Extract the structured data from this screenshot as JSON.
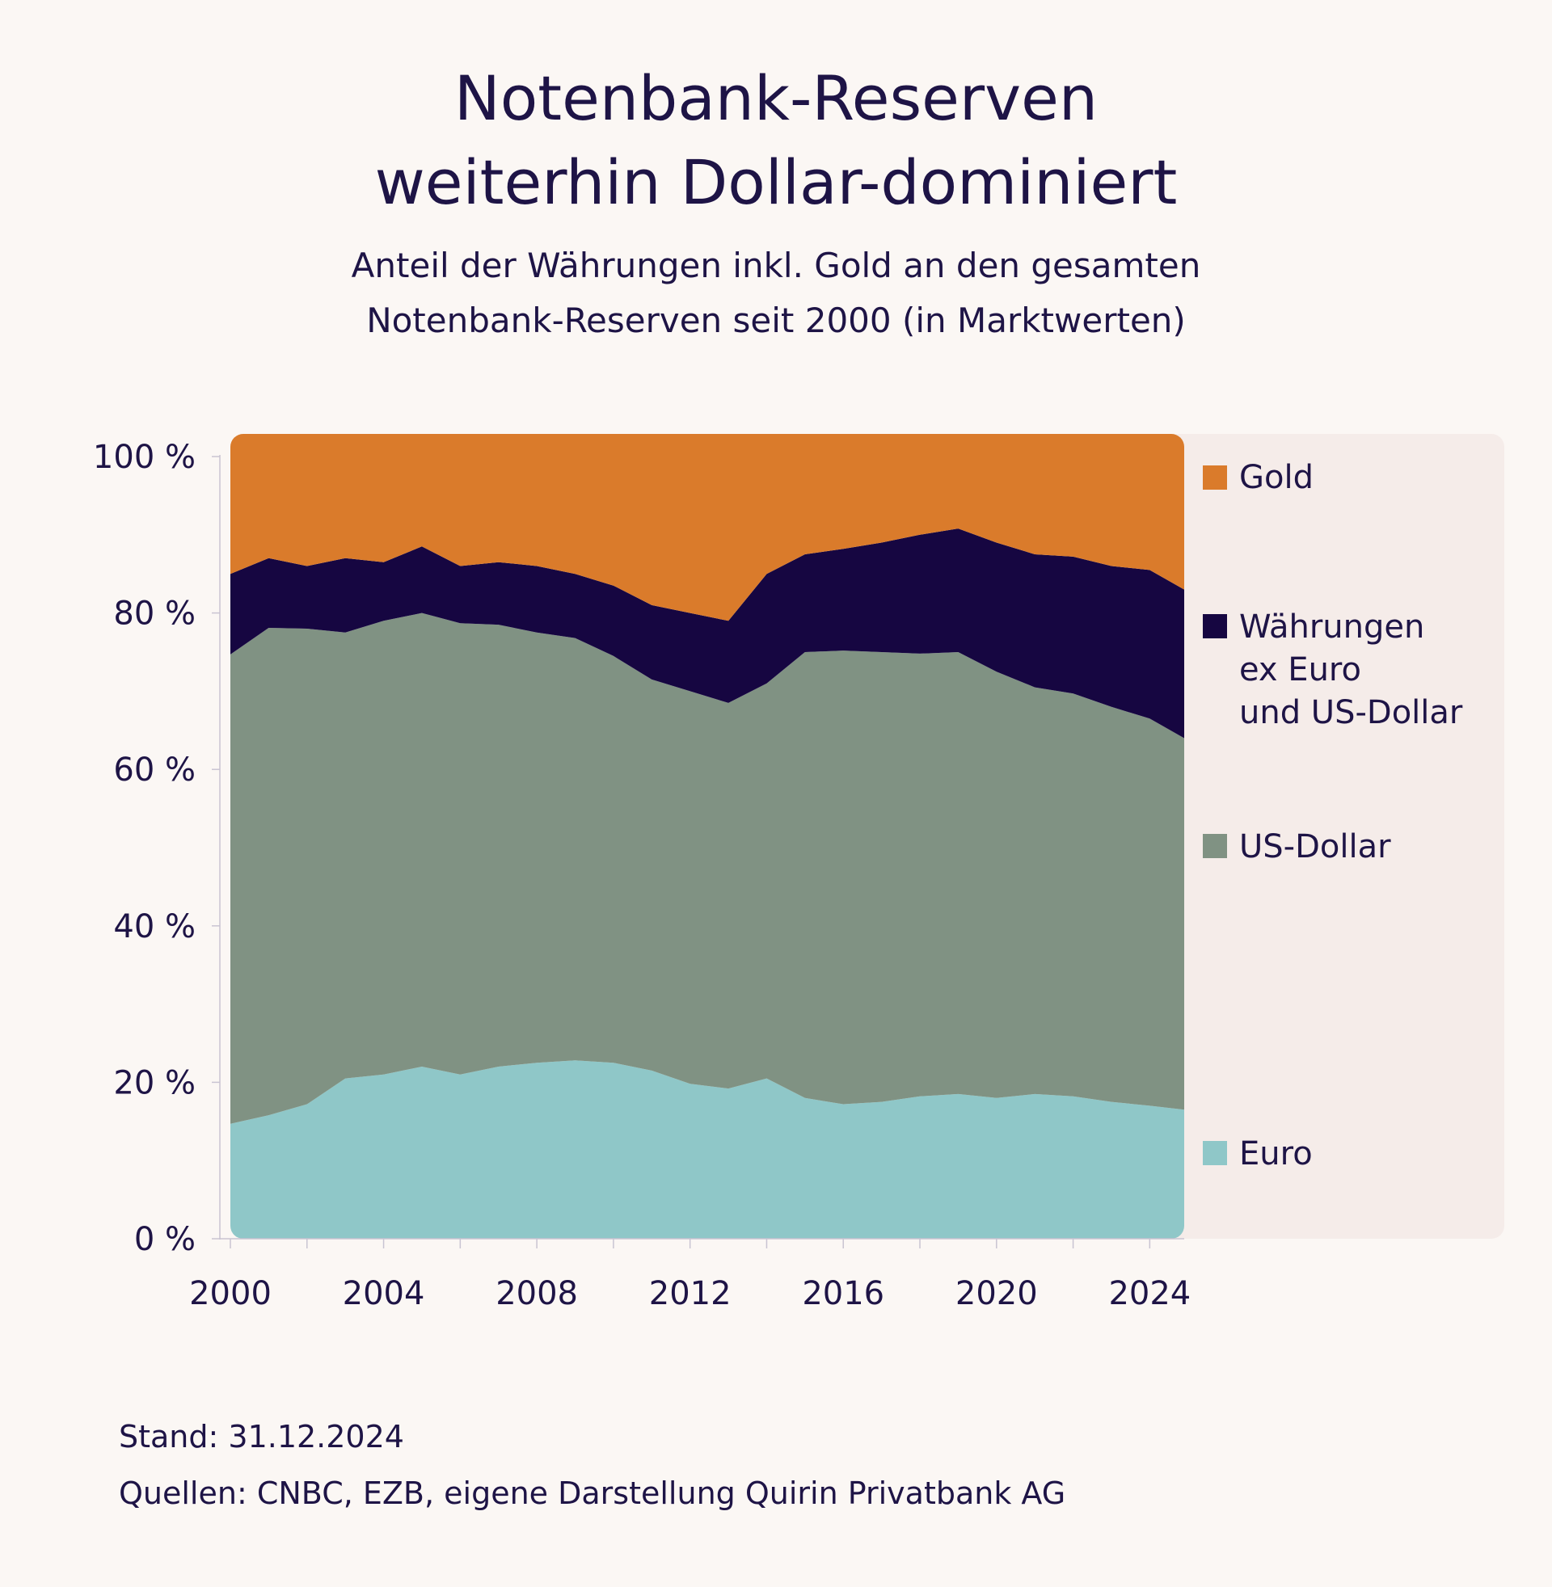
{
  "header": {
    "title_line1": "Notenbank-Reserven",
    "title_line2": "weiterhin Dollar-dominiert",
    "subtitle_line1": "Anteil der Währungen inkl. Gold an den gesamten",
    "subtitle_line2": "Notenbank-Reserven seit 2000 (in Marktwerten)"
  },
  "chart_data": {
    "type": "area",
    "stacked": true,
    "x": [
      2000,
      2001,
      2002,
      2003,
      2004,
      2005,
      2006,
      2007,
      2008,
      2009,
      2010,
      2011,
      2012,
      2013,
      2014,
      2015,
      2016,
      2017,
      2018,
      2019,
      2020,
      2021,
      2022,
      2023,
      2024,
      2024.9
    ],
    "xlim": [
      2000,
      2024.9
    ],
    "ylim": [
      0,
      100
    ],
    "x_ticks": [
      2000,
      2004,
      2008,
      2012,
      2016,
      2020,
      2024
    ],
    "x_tick_labels": [
      "2000",
      "2004",
      "2008",
      "2012",
      "2016",
      "2020",
      "2024"
    ],
    "y_ticks": [
      0,
      20,
      40,
      60,
      80,
      100
    ],
    "y_tick_labels": [
      "0 %",
      "20 %",
      "40 %",
      "60 %",
      "80 %",
      "100 %"
    ],
    "series": [
      {
        "name": "Euro",
        "color": "#8fc7c8",
        "values": [
          14.7,
          15.8,
          17.2,
          20.5,
          21.0,
          22.0,
          21.0,
          22.0,
          22.5,
          22.8,
          22.5,
          21.5,
          19.8,
          19.2,
          20.5,
          18.0,
          17.2,
          17.5,
          18.2,
          18.5,
          18.0,
          18.5,
          18.2,
          17.5,
          17.0,
          16.5
        ]
      },
      {
        "name": "US-Dollar",
        "color": "#809283",
        "values": [
          60.0,
          62.3,
          60.8,
          57.0,
          58.0,
          58.0,
          57.7,
          56.5,
          55.0,
          54.0,
          52.0,
          50.0,
          50.2,
          49.3,
          50.5,
          57.0,
          58.0,
          57.5,
          56.6,
          56.5,
          54.5,
          52.0,
          51.5,
          50.5,
          49.5,
          47.5
        ]
      },
      {
        "name": "Währungen ex Euro und US-Dollar",
        "color": "#160641",
        "values": [
          10.3,
          8.9,
          8.0,
          9.5,
          7.5,
          8.5,
          7.3,
          8.0,
          8.5,
          8.2,
          9.0,
          9.5,
          10.0,
          10.5,
          14.0,
          12.5,
          13.0,
          14.0,
          15.2,
          15.8,
          16.5,
          17.0,
          17.5,
          18.0,
          19.0,
          19.0
        ]
      },
      {
        "name": "Gold",
        "color": "#da7b2b",
        "values": [
          15.0,
          13.0,
          14.0,
          13.0,
          13.5,
          11.5,
          14.0,
          13.5,
          14.0,
          15.0,
          16.5,
          19.0,
          20.0,
          21.0,
          15.0,
          12.5,
          11.8,
          11.0,
          10.0,
          9.2,
          11.0,
          12.5,
          12.8,
          14.0,
          14.5,
          17.0
        ]
      }
    ],
    "legend": [
      "Gold",
      "Währungen ex Euro und US-Dollar",
      "US-Dollar",
      "Euro"
    ],
    "legend_lines": {
      "gold": [
        "Gold"
      ],
      "other": [
        "Währungen",
        "ex Euro",
        "und US-Dollar"
      ],
      "usd": [
        "US-Dollar"
      ],
      "euro": [
        "Euro"
      ]
    },
    "legend_placement": "right"
  },
  "footer": {
    "stand": "Stand: 31.12.2024",
    "quellen": "Quellen: CNBC, EZB, eigene Darstellung Quirin Privatbank AG"
  }
}
